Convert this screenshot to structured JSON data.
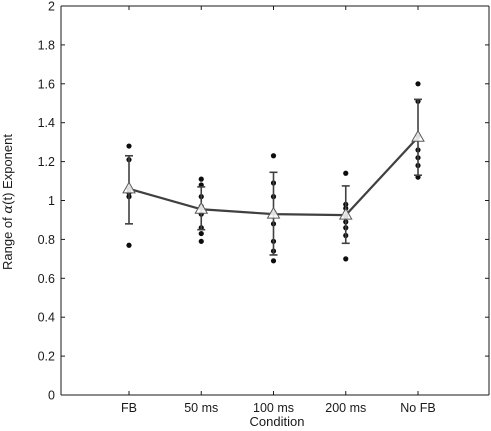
{
  "chart_data": {
    "type": "scatter",
    "title": "",
    "xlabel": "Condition",
    "ylabel": "Range of α(t) Exponent",
    "ylabel_prefix": "Range of ",
    "ylabel_alpha": "α",
    "ylabel_suffix": "(t) Exponent",
    "categories": [
      "FB",
      "50 ms",
      "100 ms",
      "200 ms",
      "No FB"
    ],
    "ylim": [
      0,
      2
    ],
    "yticks": [
      0,
      0.2,
      0.4,
      0.6,
      0.8,
      1,
      1.2,
      1.4,
      1.6,
      1.8,
      2
    ],
    "ytick_labels": [
      "0",
      "0.2",
      "0.4",
      "0.6",
      "0.8",
      "1",
      "1.2",
      "1.4",
      "1.6",
      "1.8",
      "2"
    ],
    "grid": false,
    "mean": [
      1.06,
      0.955,
      0.93,
      0.925,
      1.325
    ],
    "error_low": [
      0.88,
      0.85,
      0.72,
      0.78,
      1.13
    ],
    "error_high": [
      1.23,
      1.07,
      1.145,
      1.075,
      1.52
    ],
    "individual_points": [
      [
        1.28,
        1.21,
        1.06,
        1.04,
        1.02,
        0.77
      ],
      [
        1.11,
        1.08,
        1.02,
        0.97,
        0.93,
        0.86,
        0.83,
        0.79
      ],
      [
        1.23,
        1.09,
        1.02,
        0.94,
        0.88,
        0.79,
        0.74,
        0.69
      ],
      [
        1.14,
        0.98,
        0.96,
        0.92,
        0.89,
        0.86,
        0.82,
        0.7
      ],
      [
        1.6,
        1.51,
        1.33,
        1.26,
        1.22,
        1.18,
        1.12
      ]
    ],
    "colors": {
      "line": "#404040",
      "points": "#0d0d0d",
      "axis": "#1a1a1a",
      "marker_fill": "#ffffff"
    }
  }
}
